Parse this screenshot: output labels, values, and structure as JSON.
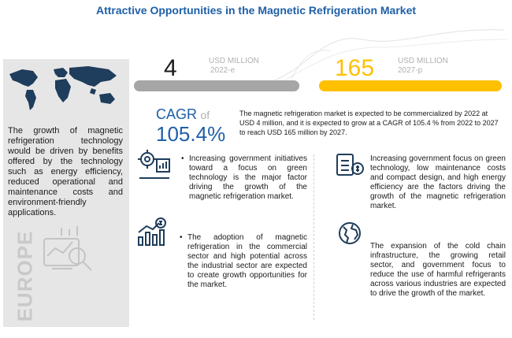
{
  "title": "Attractive Opportunities in the Magnetic Refrigeration Market",
  "region_watermark": "EUROPE",
  "panel_text": "The growth of magnetic refrigeration technology would be driven by benefits offered by the technology such as energy efficiency, reduced operational and maintenance costs and environment-friendly applications.",
  "stat_2022": {
    "value": "4",
    "unit": "USD MILLION",
    "year": "2022-e",
    "bar_color": "#a6a6a6"
  },
  "stat_2027": {
    "value": "165",
    "unit": "USD MILLION",
    "year": "2027-p",
    "bar_color": "#ffc000"
  },
  "cagr": {
    "label": "CAGR",
    "of": "of",
    "value": "105.4%"
  },
  "summary": "The magnetic refrigeration market is expected to be commercialized by 2022 at USD 4 million, and it is expected to grow at a CAGR of 105.4 % from 2022 to 2027 to reach USD 165  million by 2027.",
  "bullets_left": [
    "Increasing government initiatives toward a focus on green technology is the major factor driving the growth of the magnetic refrigeration market.",
    "The adoption of magnetic refrigeration in the commercial sector and high potential across the industrial sector are expected to create growth opportunities for the market."
  ],
  "bullets_right": [
    "Increasing government focus on green technology, low maintenance costs and compact design, and high energy efficiency are the factors driving the growth of the magnetic refrigeration market.",
    "The expansion of the cold chain infrastructure, the growing retail sector, and government focus to reduce the use of harmful refrigerants across various industries are expected to drive the growth of the market."
  ],
  "bullet_symbol": "•",
  "icons": [
    "world-map-icon",
    "analytics-icon",
    "gear-chart-icon",
    "revenue-chart-icon",
    "money-icon",
    "globe-icon"
  ],
  "colors": {
    "title": "#1f5fa8",
    "accent": "#ffc000",
    "gray_bar": "#a6a6a6",
    "panel": "#e6e6e6"
  }
}
